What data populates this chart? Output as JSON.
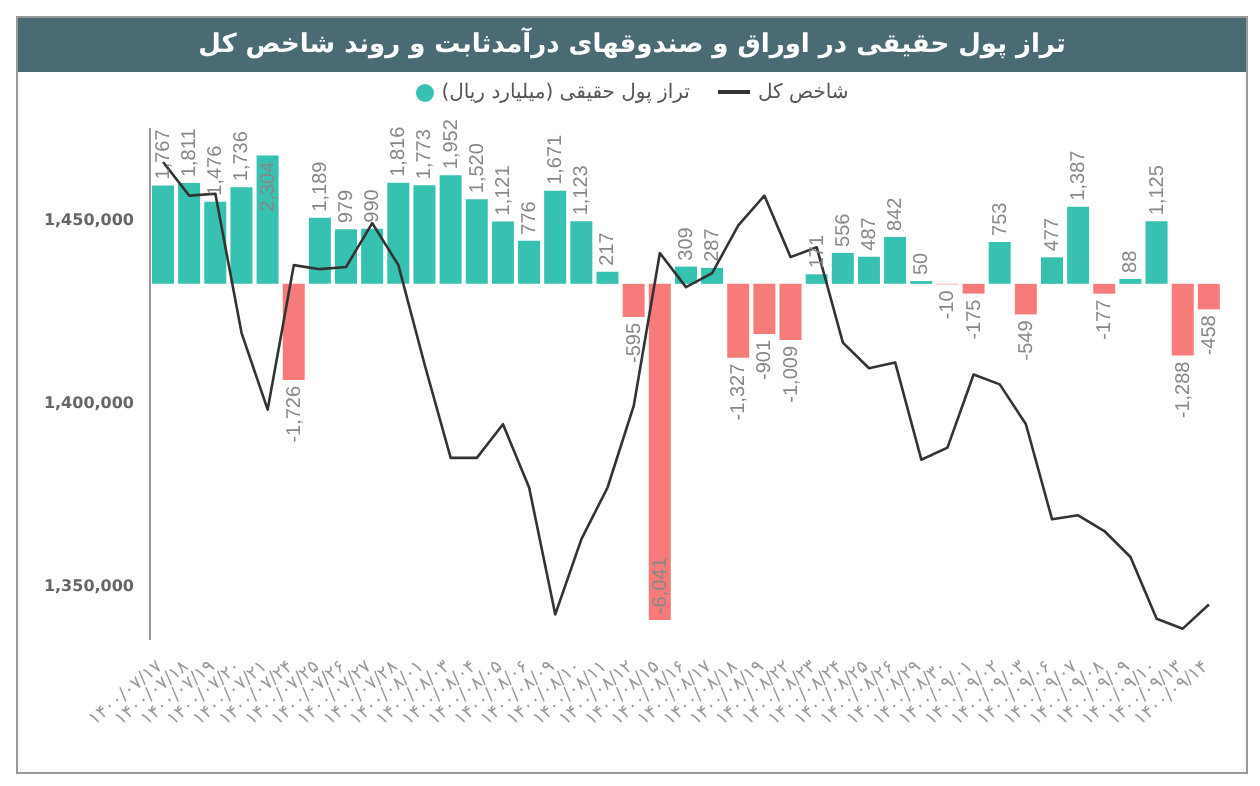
{
  "chart_data": {
    "type": "bar",
    "title": "تراز پول حقیقی در اوراق و صندوقهای درآمدثابت و روند شاخص کل",
    "categories": [
      "۱۴۰۰/۰۷/۱۷",
      "۱۴۰۰/۰۷/۱۸",
      "۱۴۰۰/۰۷/۱۹",
      "۱۴۰۰/۰۷/۲۰",
      "۱۴۰۰/۰۷/۲۱",
      "۱۴۰۰/۰۷/۲۴",
      "۱۴۰۰/۰۷/۲۵",
      "۱۴۰۰/۰۷/۲۶",
      "۱۴۰۰/۰۷/۲۷",
      "۱۴۰۰/۰۷/۲۸",
      "۱۴۰۰/۰۸/۰۱",
      "۱۴۰۰/۰۸/۰۳",
      "۱۴۰۰/۰۸/۰۴",
      "۱۴۰۰/۰۸/۰۵",
      "۱۴۰۰/۰۸/۰۶",
      "۱۴۰۰/۰۸/۰۹",
      "۱۴۰۰/۰۸/۱۰",
      "۱۴۰۰/۰۸/۱۱",
      "۱۴۰۰/۰۸/۱۲",
      "۱۴۰۰/۰۸/۱۵",
      "۱۴۰۰/۰۸/۱۶",
      "۱۴۰۰/۰۸/۱۷",
      "۱۴۰۰/۰۸/۱۸",
      "۱۴۰۰/۰۸/۱۹",
      "۱۴۰۰/۰۸/۲۲",
      "۱۴۰۰/۰۸/۲۳",
      "۱۴۰۰/۰۸/۲۴",
      "۱۴۰۰/۰۸/۲۵",
      "۱۴۰۰/۰۸/۲۶",
      "۱۴۰۰/۰۸/۲۹",
      "۱۴۰۰/۰۸/۳۰",
      "۱۴۰۰/۰۹/۰۱",
      "۱۴۰۰/۰۹/۰۲",
      "۱۴۰۰/۰۹/۰۳",
      "۱۴۰۰/۰۹/۰۶",
      "۱۴۰۰/۰۹/۰۷",
      "۱۴۰۰/۰۹/۰۸",
      "۱۴۰۰/۰۹/۰۹",
      "۱۴۰۰/۰۹/۱۰",
      "۱۴۰۰/۰۹/۱۳",
      "۱۴۰۰/۰۹/۱۴"
    ],
    "series": [
      {
        "name": "تراز پول حقیقی (میلیارد ریال)",
        "axis": "y2",
        "color": "#36c1b0",
        "colors": [
          "#36c1b0",
          "#36c1b0",
          "#36c1b0",
          "#36c1b0",
          "#36c1b0",
          "#f77b7b",
          "#36c1b0",
          "#36c1b0",
          "#36c1b0",
          "#36c1b0",
          "#36c1b0",
          "#36c1b0",
          "#36c1b0",
          "#36c1b0",
          "#36c1b0",
          "#36c1b0",
          "#36c1b0",
          "#36c1b0",
          "#f77b7b",
          "#f77b7b",
          "#36c1b0",
          "#36c1b0",
          "#f77b7b",
          "#f77b7b",
          "#f77b7b",
          "#36c1b0",
          "#36c1b0",
          "#36c1b0",
          "#36c1b0",
          "#36c1b0",
          "#f77b7b",
          "#f77b7b",
          "#36c1b0",
          "#f77b7b",
          "#36c1b0",
          "#36c1b0",
          "#f77b7b",
          "#36c1b0",
          "#36c1b0",
          "#f77b7b",
          "#f77b7b"
        ],
        "values": [
          1767,
          1811,
          1476,
          1736,
          2304,
          -1726,
          1189,
          979,
          990,
          1816,
          1773,
          1952,
          1520,
          1121,
          776,
          1671,
          1123,
          217,
          -595,
          -6041,
          309,
          287,
          -1327,
          -901,
          -1009,
          171,
          556,
          487,
          842,
          50,
          -10,
          -175,
          753,
          -549,
          477,
          1387,
          -177,
          88,
          1125,
          -1288,
          -458
        ],
        "value_labels": [
          "1,767",
          "1,811",
          "1,476",
          "1,736",
          "2,304",
          "-1,726",
          "1,189",
          "979",
          "990",
          "1,816",
          "1,773",
          "1,952",
          "1,520",
          "1,121",
          "776",
          "1,671",
          "1,123",
          "217",
          "-595",
          "-6,041",
          "309",
          "287",
          "-1,327",
          "-901",
          "-1,009",
          "171",
          "556",
          "487",
          "842",
          "50",
          "-10",
          "-175",
          "753",
          "-549",
          "477",
          "1,387",
          "-177",
          "88",
          "1,125",
          "-1,288",
          "-458"
        ]
      },
      {
        "name": "شاخص کل",
        "type": "line",
        "axis": "y",
        "color": "#333333",
        "values": [
          1465700,
          1456500,
          1457000,
          1419000,
          1398000,
          1437500,
          1436400,
          1437000,
          1449000,
          1437500,
          1410400,
          1384800,
          1384800,
          1394000,
          1376700,
          1342000,
          1362600,
          1376700,
          1399000,
          1440800,
          1431500,
          1435300,
          1448400,
          1456500,
          1439700,
          1442400,
          1416300,
          1409300,
          1410900,
          1384300,
          1387600,
          1407600,
          1404900,
          1394000,
          1368000,
          1369100,
          1364800,
          1357700,
          1340800,
          1338100,
          1344700
        ]
      }
    ],
    "ylim": [
      1335000,
      1475000
    ],
    "yticks": [
      {
        "value": 1350000,
        "label": "1,350,000"
      },
      {
        "value": 1400000,
        "label": "1,400,000"
      },
      {
        "value": 1450000,
        "label": "1,450,000"
      }
    ],
    "y2lim": [
      -6400,
      2800
    ],
    "marker": "none",
    "line_style": "solid",
    "legend": "top",
    "grid": false
  }
}
